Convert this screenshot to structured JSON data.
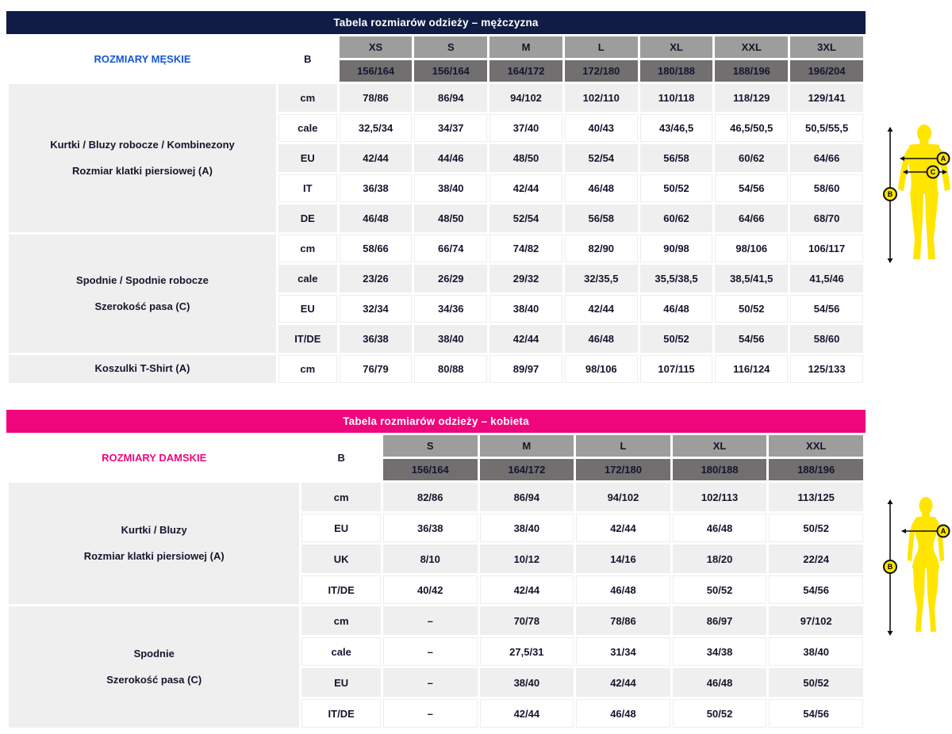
{
  "colors": {
    "men_header_bg": "#101c45",
    "men_label": "#1457d5",
    "women_header_bg": "#f0067c",
    "women_label": "#f0067c",
    "size_header_bg": "#9d9d9c",
    "range_header_bg": "#716f6f",
    "row_alt_bg": "#efefef",
    "header_text": "#ffffff",
    "body_text": "#15152e",
    "figure_yellow": "#ffe500"
  },
  "men_table": {
    "title": "Tabela rozmiarów odzieży – mężczyzna",
    "row_label": "ROZMIARY MĘSKIE",
    "b_label": "B",
    "sizes": [
      "XS",
      "S",
      "M",
      "L",
      "XL",
      "XXL",
      "3XL"
    ],
    "height_ranges": [
      "156/164",
      "156/164",
      "164/172",
      "172/180",
      "180/188",
      "188/196",
      "196/204"
    ],
    "sections": [
      {
        "label_lines": [
          "Kurtki / Bluzy robocze / Kombinezony",
          "Rozmiar klatki piersiowej (A)"
        ],
        "rows": [
          {
            "unit": "cm",
            "values": [
              "78/86",
              "86/94",
              "94/102",
              "102/110",
              "110/118",
              "118/129",
              "129/141"
            ]
          },
          {
            "unit": "cale",
            "values": [
              "32,5/34",
              "34/37",
              "37/40",
              "40/43",
              "43/46,5",
              "46,5/50,5",
              "50,5/55,5"
            ]
          },
          {
            "unit": "EU",
            "values": [
              "42/44",
              "44/46",
              "48/50",
              "52/54",
              "56/58",
              "60/62",
              "64/66"
            ]
          },
          {
            "unit": "IT",
            "values": [
              "36/38",
              "38/40",
              "42/44",
              "46/48",
              "50/52",
              "54/56",
              "58/60"
            ]
          },
          {
            "unit": "DE",
            "values": [
              "46/48",
              "48/50",
              "52/54",
              "56/58",
              "60/62",
              "64/66",
              "68/70"
            ]
          }
        ]
      },
      {
        "label_lines": [
          "Spodnie / Spodnie robocze",
          "Szerokość pasa (C)"
        ],
        "rows": [
          {
            "unit": "cm",
            "values": [
              "58/66",
              "66/74",
              "74/82",
              "82/90",
              "90/98",
              "98/106",
              "106/117"
            ]
          },
          {
            "unit": "cale",
            "values": [
              "23/26",
              "26/29",
              "29/32",
              "32/35,5",
              "35,5/38,5",
              "38,5/41,5",
              "41,5/46"
            ]
          },
          {
            "unit": "EU",
            "values": [
              "32/34",
              "34/36",
              "38/40",
              "42/44",
              "46/48",
              "50/52",
              "54/56"
            ]
          },
          {
            "unit": "IT/DE",
            "values": [
              "36/38",
              "38/40",
              "42/44",
              "46/48",
              "50/52",
              "54/56",
              "58/60"
            ]
          }
        ]
      },
      {
        "label_lines": [
          "Koszulki T-Shirt (A)"
        ],
        "rows": [
          {
            "unit": "cm",
            "values": [
              "76/79",
              "80/88",
              "89/97",
              "98/106",
              "107/115",
              "116/124",
              "125/133"
            ]
          }
        ]
      }
    ]
  },
  "women_table": {
    "title": "Tabela rozmiarów odzieży – kobieta",
    "row_label": "ROZMIARY DAMSKIE",
    "b_label": "B",
    "sizes": [
      "S",
      "M",
      "L",
      "XL",
      "XXL"
    ],
    "height_ranges": [
      "156/164",
      "164/172",
      "172/180",
      "180/188",
      "188/196"
    ],
    "sections": [
      {
        "label_lines": [
          "Kurtki / Bluzy",
          "Rozmiar klatki piersiowej (A)"
        ],
        "rows": [
          {
            "unit": "cm",
            "values": [
              "82/86",
              "86/94",
              "94/102",
              "102/113",
              "113/125"
            ]
          },
          {
            "unit": "EU",
            "values": [
              "36/38",
              "38/40",
              "42/44",
              "46/48",
              "50/52"
            ]
          },
          {
            "unit": "UK",
            "values": [
              "8/10",
              "10/12",
              "14/16",
              "18/20",
              "22/24"
            ]
          },
          {
            "unit": "IT/DE",
            "values": [
              "40/42",
              "42/44",
              "46/48",
              "50/52",
              "54/56"
            ]
          }
        ]
      },
      {
        "label_lines": [
          "Spodnie",
          "Szerokość pasa (C)"
        ],
        "rows": [
          {
            "unit": "cm",
            "values": [
              "–",
              "70/78",
              "78/86",
              "86/97",
              "97/102"
            ]
          },
          {
            "unit": "cale",
            "values": [
              "–",
              "27,5/31",
              "31/34",
              "34/38",
              "38/40"
            ]
          },
          {
            "unit": "EU",
            "values": [
              "–",
              "38/40",
              "42/44",
              "46/48",
              "50/52"
            ]
          },
          {
            "unit": "IT/DE",
            "values": [
              "–",
              "42/44",
              "46/48",
              "50/52",
              "54/56"
            ]
          }
        ]
      }
    ]
  },
  "figures": {
    "men_markers": [
      "A",
      "B",
      "C"
    ],
    "women_markers": [
      "A",
      "B"
    ]
  }
}
